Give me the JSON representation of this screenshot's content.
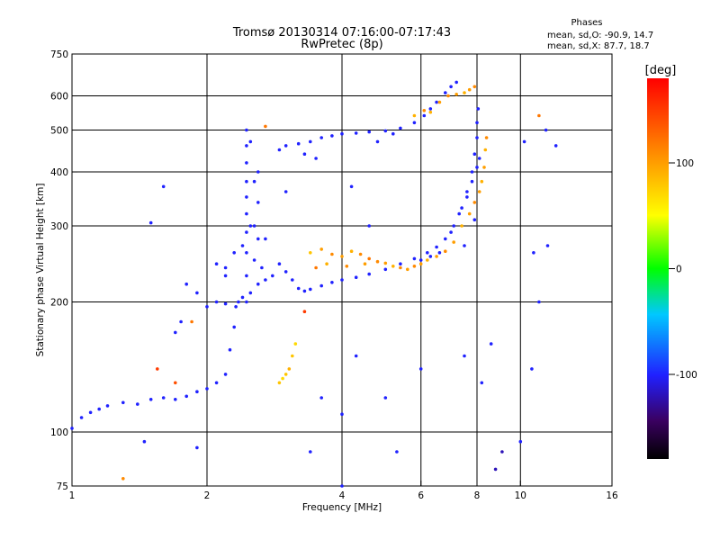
{
  "chart_data": {
    "type": "scatter",
    "title": "Tromsø 20130314 07:16:00-07:17:43",
    "subtitle": "RwPretec (8p)",
    "xlabel": "Frequency [MHz]",
    "ylabel": "Stationary phase Virtual Height [km]",
    "x_scale": "log",
    "y_scale": "log",
    "xlim": [
      1,
      16
    ],
    "ylim": [
      75,
      750
    ],
    "x_ticks": [
      1,
      2,
      4,
      6,
      8,
      10,
      16
    ],
    "y_ticks": [
      75,
      100,
      200,
      300,
      400,
      500,
      600,
      750
    ],
    "x_tick_labels": [
      "1",
      "2",
      "4",
      "6",
      "8",
      "10",
      "16"
    ],
    "y_tick_labels": [
      "75",
      "100",
      "200",
      "300",
      "400",
      "500",
      "600",
      "750"
    ],
    "x_grid": [
      2,
      4,
      6,
      8,
      10
    ],
    "y_grid": [
      100,
      200,
      300,
      400,
      500,
      600
    ],
    "phases": {
      "heading": "Phases",
      "line1": "mean, sd,O: -90.9, 14.7",
      "line2": "mean, sd,X:  87.7, 18.7"
    },
    "colorbar": {
      "label": "[deg]",
      "range": [
        -180,
        180
      ],
      "ticks": [
        100,
        0,
        -100
      ],
      "tick_labels": [
        "100",
        "0",
        "-100"
      ]
    },
    "series": [
      {
        "points": [
          [
            1.0,
            102,
            -100
          ],
          [
            1.05,
            108,
            -100
          ],
          [
            1.1,
            111,
            -100
          ],
          [
            1.15,
            113,
            -100
          ],
          [
            1.2,
            115,
            -100
          ],
          [
            1.3,
            117,
            -100
          ],
          [
            1.4,
            116,
            -100
          ],
          [
            1.5,
            119,
            -100
          ],
          [
            1.6,
            120,
            -100
          ],
          [
            1.7,
            119,
            -100
          ],
          [
            1.8,
            121,
            -100
          ],
          [
            1.9,
            124,
            -100
          ],
          [
            2.0,
            126,
            -100
          ],
          [
            2.1,
            130,
            -100
          ],
          [
            2.2,
            136,
            -100
          ],
          [
            2.25,
            155,
            -100
          ],
          [
            2.3,
            175,
            -100
          ],
          [
            2.32,
            195,
            -100
          ],
          [
            2.35,
            200,
            -100
          ],
          [
            2.4,
            205,
            -100
          ],
          [
            2.5,
            210,
            -100
          ],
          [
            2.6,
            220,
            -100
          ],
          [
            2.7,
            225,
            -100
          ],
          [
            2.8,
            230,
            -100
          ],
          [
            2.9,
            245,
            -100
          ],
          [
            3.0,
            235,
            -100
          ],
          [
            3.1,
            225,
            -100
          ],
          [
            3.2,
            215,
            -100
          ],
          [
            3.3,
            212,
            -100
          ],
          [
            3.4,
            214,
            -100
          ],
          [
            3.6,
            218,
            -100
          ],
          [
            3.8,
            222,
            -100
          ],
          [
            4.0,
            225,
            -100
          ],
          [
            4.3,
            228,
            -100
          ],
          [
            4.6,
            232,
            -100
          ],
          [
            5.0,
            238,
            -100
          ],
          [
            5.4,
            245,
            -100
          ],
          [
            5.8,
            252,
            -100
          ],
          [
            6.2,
            260,
            -100
          ],
          [
            6.5,
            268,
            -100
          ],
          [
            6.8,
            280,
            -100
          ],
          [
            7.1,
            300,
            -100
          ],
          [
            7.4,
            330,
            -100
          ],
          [
            7.6,
            360,
            -100
          ],
          [
            7.8,
            400,
            -100
          ],
          [
            7.9,
            440,
            -100
          ],
          [
            8.0,
            480,
            -100
          ],
          [
            8.0,
            520,
            -100
          ],
          [
            8.05,
            560,
            -100
          ],
          [
            2.0,
            195,
            -100
          ],
          [
            2.1,
            200,
            -100
          ],
          [
            2.2,
            198,
            -100
          ],
          [
            1.9,
            210,
            -100
          ],
          [
            1.8,
            220,
            -100
          ],
          [
            1.75,
            180,
            -100
          ],
          [
            1.7,
            170,
            -100
          ],
          [
            2.2,
            240,
            -100
          ],
          [
            2.3,
            260,
            -100
          ],
          [
            2.2,
            230,
            -100
          ],
          [
            2.1,
            245,
            -100
          ]
        ]
      },
      {
        "points": [
          [
            2.45,
            200,
            -100
          ],
          [
            2.45,
            230,
            -100
          ],
          [
            2.45,
            260,
            -100
          ],
          [
            2.45,
            290,
            -100
          ],
          [
            2.45,
            320,
            -100
          ],
          [
            2.45,
            350,
            -100
          ],
          [
            2.45,
            380,
            -100
          ],
          [
            2.45,
            420,
            -100
          ],
          [
            2.45,
            460,
            -100
          ],
          [
            2.45,
            500,
            -100
          ],
          [
            2.5,
            470,
            -100
          ],
          [
            2.55,
            380,
            -100
          ],
          [
            2.55,
            300,
            -100
          ],
          [
            2.55,
            250,
            -100
          ],
          [
            2.6,
            280,
            -100
          ],
          [
            2.6,
            340,
            -100
          ],
          [
            2.6,
            400,
            -100
          ],
          [
            2.5,
            300,
            -100
          ],
          [
            2.4,
            270,
            -100
          ],
          [
            2.65,
            240,
            -100
          ],
          [
            2.7,
            280,
            -100
          ]
        ]
      },
      {
        "points": [
          [
            2.9,
            450,
            -100
          ],
          [
            3.0,
            460,
            -100
          ],
          [
            3.2,
            465,
            -100
          ],
          [
            3.4,
            470,
            -100
          ],
          [
            3.6,
            480,
            -100
          ],
          [
            3.8,
            485,
            -100
          ],
          [
            4.0,
            490,
            -100
          ],
          [
            4.3,
            492,
            -100
          ],
          [
            4.6,
            495,
            -100
          ],
          [
            5.0,
            498,
            -100
          ],
          [
            5.4,
            505,
            -100
          ],
          [
            5.8,
            520,
            -100
          ],
          [
            6.1,
            540,
            -100
          ],
          [
            6.3,
            560,
            -100
          ],
          [
            6.5,
            580,
            -100
          ],
          [
            6.8,
            610,
            -100
          ],
          [
            7.0,
            630,
            -100
          ],
          [
            7.2,
            645,
            -100
          ],
          [
            3.3,
            440,
            -100
          ],
          [
            3.5,
            430,
            -100
          ],
          [
            4.8,
            470,
            -100
          ],
          [
            5.2,
            490,
            -100
          ]
        ]
      },
      {
        "points": [
          [
            6.6,
            260,
            -100
          ],
          [
            7.0,
            290,
            -100
          ],
          [
            7.3,
            320,
            -100
          ],
          [
            7.6,
            350,
            -100
          ],
          [
            7.8,
            380,
            -100
          ],
          [
            8.0,
            410,
            -100
          ],
          [
            8.1,
            430,
            -100
          ],
          [
            7.5,
            270,
            -100
          ],
          [
            7.9,
            310,
            -100
          ],
          [
            6.0,
            250,
            -100
          ],
          [
            6.3,
            255,
            -100
          ]
        ]
      },
      {
        "points": [
          [
            3.4,
            260,
            80
          ],
          [
            3.6,
            265,
            100
          ],
          [
            3.8,
            258,
            110
          ],
          [
            4.0,
            255,
            100
          ],
          [
            4.2,
            262,
            90
          ],
          [
            4.4,
            258,
            110
          ],
          [
            4.6,
            252,
            120
          ],
          [
            4.8,
            248,
            110
          ],
          [
            5.0,
            246,
            100
          ],
          [
            5.2,
            242,
            90
          ],
          [
            5.4,
            240,
            110
          ],
          [
            5.6,
            238,
            100
          ],
          [
            5.8,
            242,
            110
          ],
          [
            6.0,
            245,
            100
          ],
          [
            6.2,
            250,
            90
          ],
          [
            6.5,
            255,
            100
          ],
          [
            6.8,
            262,
            110
          ],
          [
            7.1,
            275,
            100
          ],
          [
            7.4,
            300,
            90
          ],
          [
            7.7,
            320,
            100
          ],
          [
            7.9,
            340,
            110
          ],
          [
            8.1,
            360,
            100
          ],
          [
            8.2,
            380,
            90
          ],
          [
            8.3,
            410,
            100
          ],
          [
            8.35,
            450,
            90
          ],
          [
            8.4,
            480,
            110
          ],
          [
            3.5,
            240,
            120
          ],
          [
            3.7,
            245,
            90
          ],
          [
            4.1,
            242,
            110
          ],
          [
            4.5,
            245,
            100
          ]
        ]
      },
      {
        "points": [
          [
            6.3,
            550,
            90
          ],
          [
            6.6,
            580,
            100
          ],
          [
            6.9,
            600,
            110
          ],
          [
            7.2,
            605,
            100
          ],
          [
            7.5,
            610,
            90
          ],
          [
            7.7,
            620,
            100
          ],
          [
            7.9,
            630,
            110
          ],
          [
            5.8,
            540,
            90
          ],
          [
            6.1,
            555,
            110
          ]
        ]
      },
      {
        "points": [
          [
            2.9,
            130,
            80
          ],
          [
            2.95,
            133,
            70
          ],
          [
            3.0,
            136,
            80
          ],
          [
            3.05,
            140,
            90
          ],
          [
            3.1,
            150,
            80
          ],
          [
            3.15,
            160,
            70
          ]
        ]
      },
      {
        "points": [
          [
            1.55,
            140,
            150
          ],
          [
            1.7,
            130,
            140
          ],
          [
            1.85,
            180,
            120
          ],
          [
            3.3,
            190,
            150
          ],
          [
            3.6,
            120,
            -100
          ],
          [
            4.0,
            110,
            -100
          ],
          [
            4.3,
            150,
            -100
          ],
          [
            5.0,
            120,
            -100
          ],
          [
            5.3,
            90,
            -100
          ],
          [
            6.0,
            140,
            -100
          ],
          [
            7.5,
            150,
            -100
          ],
          [
            8.2,
            130,
            -100
          ],
          [
            8.6,
            160,
            -100
          ],
          [
            9.1,
            90,
            -120
          ],
          [
            8.8,
            82,
            -120
          ],
          [
            10.6,
            140,
            -100
          ],
          [
            11.0,
            200,
            -100
          ],
          [
            11.5,
            270,
            -100
          ],
          [
            11.4,
            500,
            -100
          ],
          [
            11.0,
            540,
            120
          ],
          [
            10.2,
            470,
            -100
          ],
          [
            10.7,
            260,
            -100
          ],
          [
            10.0,
            95,
            -100
          ],
          [
            3.4,
            90,
            -100
          ],
          [
            4.6,
            300,
            -100
          ],
          [
            4.2,
            370,
            -100
          ],
          [
            3.0,
            360,
            -100
          ],
          [
            1.6,
            370,
            -100
          ],
          [
            1.5,
            305,
            -100
          ],
          [
            4.0,
            75,
            -100
          ],
          [
            1.3,
            78,
            110
          ],
          [
            1.45,
            95,
            -100
          ],
          [
            1.9,
            92,
            -100
          ],
          [
            2.7,
            510,
            120
          ],
          [
            12.0,
            460,
            -100
          ]
        ]
      }
    ]
  }
}
